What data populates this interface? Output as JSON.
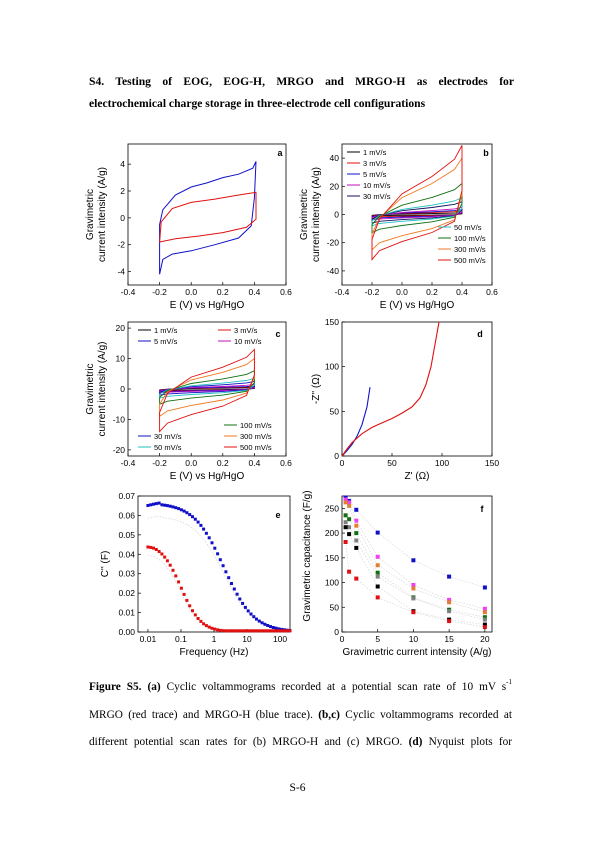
{
  "section": {
    "line1": "S4. Testing of EOG, EOG-H, MRGO and MRGO-H as electrodes for",
    "line2": "electrochemical charge storage in three-electrode cell configurations"
  },
  "chart_data": [
    {
      "panel": "a",
      "type": "line",
      "xlabel": "E (V) vs Hg/HgO",
      "ylabel": [
        "Gravimetric",
        "current intensity (A/g)"
      ],
      "xlim": [
        -0.4,
        0.6
      ],
      "ylim": [
        -5,
        5.5
      ],
      "xticks": [
        "-0.4",
        "-0.2",
        "0.0",
        "0.2",
        "0.4",
        "0.6"
      ],
      "yticks": [
        "-4",
        "-2",
        "0",
        "2",
        "4"
      ],
      "series": [
        {
          "color": "#1010c8",
          "points": [
            [
              -0.2,
              -4.2
            ],
            [
              -0.18,
              -3.1
            ],
            [
              -0.12,
              -2.7
            ],
            [
              0.0,
              -2.45
            ],
            [
              0.15,
              -2.0
            ],
            [
              0.3,
              -1.5
            ],
            [
              0.38,
              -0.6
            ],
            [
              0.4,
              1.5
            ],
            [
              0.41,
              4.2
            ],
            [
              0.39,
              3.7
            ],
            [
              0.3,
              3.25
            ],
            [
              0.2,
              3.0
            ],
            [
              0.1,
              2.6
            ],
            [
              0.0,
              2.3
            ],
            [
              -0.1,
              1.7
            ],
            [
              -0.18,
              0.6
            ],
            [
              -0.2,
              -0.5
            ],
            [
              -0.2,
              -4.2
            ]
          ]
        },
        {
          "color": "#e01010",
          "points": [
            [
              -0.2,
              -1.8
            ],
            [
              -0.1,
              -1.55
            ],
            [
              0.05,
              -1.35
            ],
            [
              0.2,
              -1.1
            ],
            [
              0.35,
              -0.7
            ],
            [
              0.41,
              -0.1
            ],
            [
              0.41,
              1.9
            ],
            [
              0.3,
              1.7
            ],
            [
              0.15,
              1.4
            ],
            [
              0.0,
              1.15
            ],
            [
              -0.12,
              0.7
            ],
            [
              -0.19,
              -0.3
            ],
            [
              -0.2,
              -1.8
            ]
          ]
        }
      ]
    },
    {
      "panel": "b",
      "type": "line",
      "xlabel": "E (V) vs Hg/HgO",
      "ylabel": [
        "Gravimetric",
        "current intensity (A/g)"
      ],
      "xlim": [
        -0.4,
        0.6
      ],
      "ylim": [
        -50,
        50
      ],
      "xticks": [
        "-0.4",
        "-0.2",
        "0.0",
        "0.2",
        "0.4",
        "0.6"
      ],
      "yticks": [
        "-40",
        "-20",
        "0",
        "20",
        "40"
      ],
      "legend_left": [
        "1 mV/s",
        "3 mV/s",
        "5 mV/s",
        "10 mV/s",
        "30 mV/s"
      ],
      "legend_right": [
        "50 mV/s",
        "100 mV/s",
        "300 mV/s",
        "500 mV/s"
      ],
      "series": [
        {
          "name": "1 mV/s",
          "color": "#000000",
          "peak": 1.2,
          "low": -1.0
        },
        {
          "name": "3 mV/s",
          "color": "#e01010",
          "peak": 2.5,
          "low": -2.0
        },
        {
          "name": "5 mV/s",
          "color": "#1010c8",
          "peak": 3.5,
          "low": -3.0
        },
        {
          "name": "10 mV/s",
          "color": "#c010c0",
          "peak": 5.0,
          "low": -4.0
        },
        {
          "name": "30 mV/s",
          "color": "#101060",
          "peak": 9.0,
          "low": -6.0
        },
        {
          "name": "50 mV/s",
          "color": "#20c0c0",
          "peak": 12.0,
          "low": -8.0
        },
        {
          "name": "100 mV/s",
          "color": "#107010",
          "peak": 22.0,
          "low": -13.0
        },
        {
          "name": "300 mV/s",
          "color": "#f07820",
          "peak": 40.0,
          "low": -25.0
        },
        {
          "name": "500 mV/s",
          "color": "#e01010",
          "peak": 49.0,
          "low": -32.0
        }
      ]
    },
    {
      "panel": "c",
      "type": "line",
      "xlabel": "E (V) vs Hg/HgO",
      "ylabel": [
        "Gravimetric",
        "current intensity (A/g)"
      ],
      "xlim": [
        -0.4,
        0.6
      ],
      "ylim": [
        -22,
        22
      ],
      "xticks": [
        "-0.4",
        "-0.2",
        "0.0",
        "0.2",
        "0.4",
        "0.6"
      ],
      "yticks": [
        "-20",
        "-10",
        "0",
        "10",
        "20"
      ],
      "legend_top": [
        "1 mV/s",
        "3 mV/s",
        "5 mV/s",
        "10 mV/s"
      ],
      "legend_bottom_left": [
        "30 mV/s",
        "50 mV/s"
      ],
      "legend_bottom_right": [
        "100 mV/s",
        "300 mV/s",
        "500 mV/s"
      ],
      "series": [
        {
          "name": "1 mV/s",
          "color": "#000000",
          "peak": 0.5,
          "low": -0.5
        },
        {
          "name": "3 mV/s",
          "color": "#e01010",
          "peak": 0.8,
          "low": -0.8
        },
        {
          "name": "5 mV/s",
          "color": "#1010c8",
          "peak": 1.0,
          "low": -1.0
        },
        {
          "name": "10 mV/s",
          "color": "#c010c0",
          "peak": 1.5,
          "low": -1.3
        },
        {
          "name": "30 mV/s",
          "color": "#1010c8",
          "peak": 2.5,
          "low": -2.0
        },
        {
          "name": "50 mV/s",
          "color": "#20c0c0",
          "peak": 3.5,
          "low": -3.0
        },
        {
          "name": "100 mV/s",
          "color": "#107010",
          "peak": 6.0,
          "low": -5.0
        },
        {
          "name": "300 mV/s",
          "color": "#f07820",
          "peak": 10.0,
          "low": -9.0
        },
        {
          "name": "500 mV/s",
          "color": "#e01010",
          "peak": 13.0,
          "low": -14.0
        }
      ]
    },
    {
      "panel": "d",
      "type": "line",
      "xlabel": "Z' (Ω)",
      "ylabel": "-Z'' (Ω)",
      "xlim": [
        0,
        150
      ],
      "ylim": [
        0,
        150
      ],
      "xticks": [
        "0",
        "50",
        "100",
        "150"
      ],
      "yticks": [
        "0",
        "50",
        "100",
        "150"
      ],
      "series": [
        {
          "color": "#1010c8",
          "points": [
            [
              0,
              0
            ],
            [
              5,
              6
            ],
            [
              10,
              13
            ],
            [
              15,
              22
            ],
            [
              20,
              35
            ],
            [
              25,
              55
            ],
            [
              28,
              77
            ]
          ]
        },
        {
          "color": "#e01010",
          "points": [
            [
              0,
              0
            ],
            [
              5,
              8
            ],
            [
              10,
              15
            ],
            [
              20,
              25
            ],
            [
              30,
              32
            ],
            [
              40,
              37
            ],
            [
              50,
              42
            ],
            [
              60,
              48
            ],
            [
              70,
              55
            ],
            [
              78,
              65
            ],
            [
              84,
              80
            ],
            [
              89,
              100
            ],
            [
              93,
              125
            ],
            [
              97,
              150
            ]
          ]
        }
      ]
    },
    {
      "panel": "e",
      "type": "scatter",
      "xlabel": "Frequency (Hz)",
      "ylabel": "C'' (F)",
      "xscale": "log",
      "xlim": [
        0.005,
        200
      ],
      "ylim": [
        0,
        0.07
      ],
      "xticks": [
        "0.01",
        "0.1",
        "1",
        "10",
        "100"
      ],
      "yticks": [
        "0.00",
        "0.01",
        "0.02",
        "0.03",
        "0.04",
        "0.05",
        "0.06",
        "0.07"
      ],
      "series": [
        {
          "color": "#1010c8",
          "shape": "square",
          "lgf_start": -2.0,
          "lgf_end": 2.3,
          "count": 52,
          "peak": 0.0665,
          "peak_lgf": -1.8,
          "decay_mid": 0.3,
          "decay_width": 0.45
        },
        {
          "color": "#e01010",
          "shape": "square",
          "lgf_start": -2.0,
          "lgf_end": 2.3,
          "count": 52,
          "peak": 0.046,
          "peak_lgf": -1.95,
          "decay_mid": -1.0,
          "decay_width": 0.3
        }
      ]
    },
    {
      "panel": "f",
      "type": "scatter",
      "xlabel": "Gravimetric current intensity (A/g)",
      "ylabel": "Gravimetric capacitance (F/g)",
      "xlim": [
        0,
        21
      ],
      "ylim": [
        0,
        275
      ],
      "xticks": [
        "0",
        "5",
        "10",
        "15",
        "20"
      ],
      "yticks": [
        "0",
        "50",
        "100",
        "150",
        "200",
        "250"
      ],
      "x": [
        0.5,
        1,
        2,
        5,
        10,
        15,
        20
      ],
      "series": [
        {
          "color": "#1010c8",
          "values": [
            272,
            265,
            247,
            201,
            145,
            112,
            90
          ]
        },
        {
          "color": "#f040f0",
          "values": [
            268,
            262,
            225,
            152,
            95,
            65,
            47
          ]
        },
        {
          "color": "#e08030",
          "values": [
            262,
            255,
            215,
            135,
            88,
            60,
            40
          ]
        },
        {
          "color": "#107010",
          "values": [
            236,
            228,
            200,
            120,
            70,
            45,
            30
          ]
        },
        {
          "color": "#808080",
          "values": [
            222,
            212,
            185,
            112,
            68,
            42,
            25
          ]
        },
        {
          "color": "#000000",
          "values": [
            212,
            198,
            170,
            92,
            42,
            25,
            15
          ]
        },
        {
          "color": "#e01010",
          "values": [
            182,
            122,
            108,
            70,
            40,
            22,
            10
          ]
        }
      ]
    }
  ],
  "caption": {
    "bold_label": "Figure S5.",
    "a_label": "(a)",
    "line1_text": "Cyclic voltammograms recorded at a potential scan rate of 10 mV s",
    "line1_sup": "-1",
    "line2": "MRGO (red trace) and MRGO-H (blue trace).",
    "bc_label": "(b,c)",
    "line2_rest": "Cyclic voltammograms recorded at",
    "line3": "different potential scan rates for (b) MRGO-H and (c) MRGO.",
    "d_label": "(d)",
    "line3_rest": "Nyquist plots for"
  },
  "page_number": "S-6"
}
